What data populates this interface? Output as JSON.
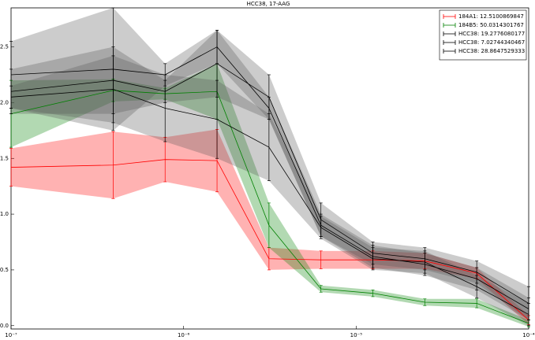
{
  "chart_data": {
    "type": "line",
    "title": "HCC38, 17-AAG",
    "x": [
      1e-07,
      3.90625e-07,
      7.8125e-07,
      1.5625e-06,
      3.125e-06,
      6.25e-06,
      1.25e-05,
      2.5e-05,
      5e-05,
      0.0001
    ],
    "xscale": "log",
    "xlim": [
      1e-07,
      0.0001
    ],
    "xticks": [
      {
        "value": 1e-07,
        "label": "10⁻⁷"
      },
      {
        "value": 1e-06,
        "label": "10⁻⁶"
      },
      {
        "value": 1e-05,
        "label": "10⁻⁵"
      },
      {
        "value": 0.0001,
        "label": "10⁻⁴"
      }
    ],
    "ylim": [
      -0.03,
      2.85
    ],
    "yticks": [
      {
        "value": 0,
        "label": "0.0"
      },
      0.5,
      {
        "value": 1,
        "label": "1.0"
      },
      1.5,
      {
        "value": 2,
        "label": "2.0"
      },
      2.5
    ],
    "legend": "upper right",
    "series": [
      {
        "name": "184A1: 12.5100869847",
        "color": "#ff0000",
        "values": [
          1.42,
          1.44,
          1.49,
          1.48,
          0.6,
          0.59,
          0.59,
          0.58,
          0.47,
          0.05
        ],
        "error": [
          0.17,
          0.3,
          0.2,
          0.28,
          0.1,
          0.08,
          0.08,
          0.07,
          0.05,
          0.04
        ]
      },
      {
        "name": "184B5: 50.0314301767",
        "color": "#008000",
        "values": [
          1.9,
          2.11,
          2.08,
          2.1,
          0.9,
          0.33,
          0.29,
          0.21,
          0.2,
          0.02
        ],
        "error": [
          0.3,
          0.1,
          0.05,
          0.25,
          0.2,
          0.03,
          0.03,
          0.03,
          0.04,
          0.03
        ]
      },
      {
        "name": "HCC38: 19.2776080177",
        "color": "#000000",
        "values": [
          2.1,
          2.2,
          2.1,
          2.35,
          2.05,
          0.95,
          0.65,
          0.6,
          0.48,
          0.2
        ],
        "error": [
          0.2,
          0.3,
          0.1,
          0.3,
          0.2,
          0.15,
          0.1,
          0.1,
          0.1,
          0.15
        ]
      },
      {
        "name": "HCC38: 7.02744340467",
        "color": "#000000",
        "values": [
          2.25,
          2.3,
          2.25,
          2.5,
          1.95,
          0.9,
          0.62,
          0.55,
          0.42,
          0.15
        ],
        "error": [
          0.3,
          0.55,
          0.1,
          0.15,
          0.1,
          0.1,
          0.1,
          0.1,
          0.1,
          0.1
        ]
      },
      {
        "name": "HCC38: 28.8647529333",
        "color": "#000000",
        "values": [
          2.05,
          2.12,
          1.95,
          1.85,
          1.6,
          0.88,
          0.6,
          0.57,
          0.35,
          0.1
        ],
        "error": [
          0.1,
          0.3,
          0.3,
          0.35,
          0.3,
          0.1,
          0.1,
          0.1,
          0.1,
          0.1
        ]
      }
    ]
  }
}
